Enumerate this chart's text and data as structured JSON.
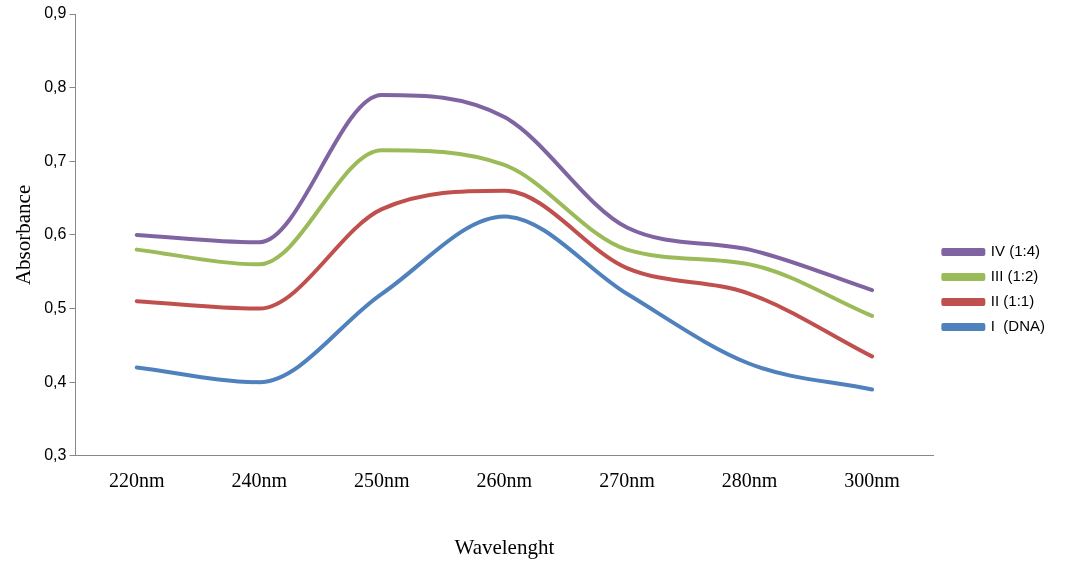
{
  "chart_data": {
    "type": "line",
    "xlabel": "Wavelenght",
    "ylabel": "Absorbance",
    "categories": [
      "220nm",
      "240nm",
      "250nm",
      "260nm",
      "270nm",
      "280nm",
      "300nm"
    ],
    "series": [
      {
        "name": "I  (DNA)",
        "color": "#4f81bd",
        "values": [
          0.42,
          0.4,
          0.52,
          0.625,
          0.52,
          0.425,
          0.39
        ]
      },
      {
        "name": "II (1:1)",
        "color": "#c0504d",
        "values": [
          0.51,
          0.5,
          0.635,
          0.66,
          0.555,
          0.52,
          0.435
        ]
      },
      {
        "name": "III (1:2)",
        "color": "#9bbb59",
        "values": [
          0.58,
          0.56,
          0.715,
          0.695,
          0.58,
          0.56,
          0.49
        ]
      },
      {
        "name": "IV (1:4)",
        "color": "#8064a2",
        "values": [
          0.6,
          0.59,
          0.79,
          0.76,
          0.61,
          0.58,
          0.525
        ]
      }
    ],
    "ylim": [
      0.3,
      0.9
    ],
    "yticks": [
      {
        "value": 0.3,
        "label": "0,3"
      },
      {
        "value": 0.4,
        "label": "0,4"
      },
      {
        "value": 0.5,
        "label": "0,5"
      },
      {
        "value": 0.6,
        "label": "0,6"
      },
      {
        "value": 0.7,
        "label": "0,7"
      },
      {
        "value": 0.8,
        "label": "0,8"
      },
      {
        "value": 0.9,
        "label": "0,9"
      }
    ],
    "grid": false,
    "legend": "right",
    "marker": "none",
    "line_style": "solid"
  }
}
